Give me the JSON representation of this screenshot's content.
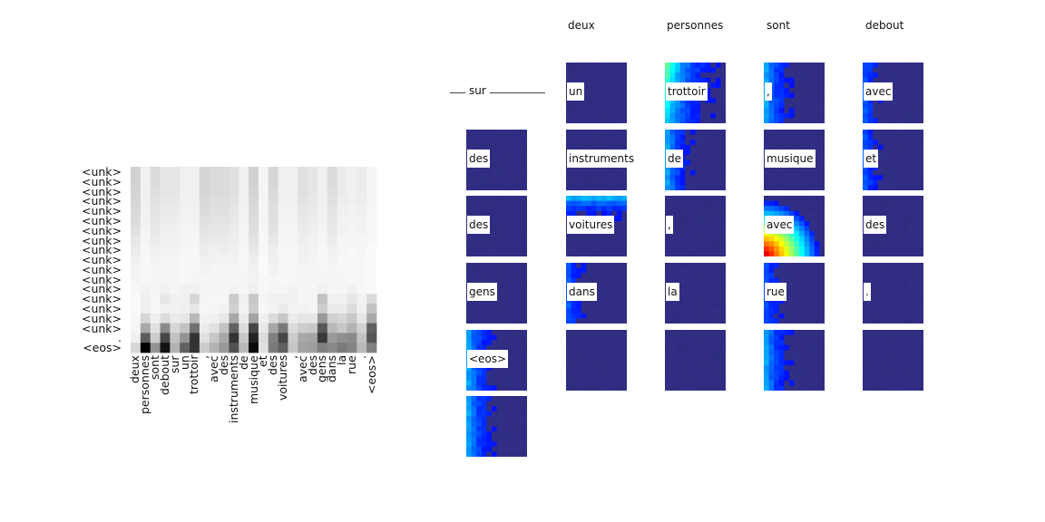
{
  "chart_data": [
    {
      "type": "heatmap",
      "title": "",
      "x_tokens": [
        "deux",
        "personnes",
        "sont",
        "debout",
        "sur",
        "un",
        "trottoir",
        ",",
        "avec",
        "des",
        "instruments",
        "de",
        "musique",
        "et",
        "des",
        "voitures",
        ",",
        "avec",
        "des",
        "gens",
        "dans",
        "la",
        "rue",
        ".",
        "<eos>"
      ],
      "y_tokens": [
        "<unk>",
        "<unk>",
        "<unk>",
        "<unk>",
        "<unk>",
        "<unk>",
        "<unk>",
        "<unk>",
        "<unk>",
        "<unk>",
        "<unk>",
        "<unk>",
        "<unk>",
        "<unk>",
        "<unk>",
        "<unk>",
        "<unk>",
        ".",
        "<eos>"
      ],
      "colormap": "grayscale (dark = high attention)",
      "rows": [
        [
          0.18,
          0.06,
          0.14,
          0.1,
          0.1,
          0.06,
          0.06,
          0.16,
          0.14,
          0.14,
          0.12,
          0.06,
          0.18,
          0.04,
          0.16,
          0.06,
          0.06,
          0.12,
          0.1,
          0.06,
          0.14,
          0.08,
          0.06,
          0.08,
          0.04
        ],
        [
          0.18,
          0.06,
          0.14,
          0.1,
          0.1,
          0.06,
          0.06,
          0.16,
          0.14,
          0.14,
          0.12,
          0.06,
          0.18,
          0.04,
          0.16,
          0.06,
          0.06,
          0.12,
          0.1,
          0.06,
          0.14,
          0.08,
          0.06,
          0.08,
          0.04
        ],
        [
          0.17,
          0.06,
          0.13,
          0.1,
          0.1,
          0.06,
          0.06,
          0.16,
          0.14,
          0.14,
          0.12,
          0.06,
          0.17,
          0.04,
          0.15,
          0.06,
          0.06,
          0.12,
          0.1,
          0.06,
          0.13,
          0.08,
          0.06,
          0.08,
          0.04
        ],
        [
          0.16,
          0.06,
          0.12,
          0.09,
          0.09,
          0.06,
          0.06,
          0.15,
          0.13,
          0.13,
          0.11,
          0.06,
          0.16,
          0.04,
          0.14,
          0.06,
          0.06,
          0.11,
          0.09,
          0.06,
          0.12,
          0.07,
          0.06,
          0.07,
          0.04
        ],
        [
          0.15,
          0.05,
          0.11,
          0.08,
          0.08,
          0.05,
          0.05,
          0.14,
          0.12,
          0.12,
          0.1,
          0.05,
          0.15,
          0.04,
          0.13,
          0.05,
          0.05,
          0.1,
          0.08,
          0.05,
          0.11,
          0.06,
          0.05,
          0.06,
          0.03
        ],
        [
          0.14,
          0.05,
          0.1,
          0.07,
          0.07,
          0.05,
          0.05,
          0.12,
          0.11,
          0.11,
          0.09,
          0.05,
          0.14,
          0.04,
          0.12,
          0.05,
          0.05,
          0.09,
          0.07,
          0.05,
          0.1,
          0.05,
          0.05,
          0.05,
          0.03
        ],
        [
          0.12,
          0.04,
          0.09,
          0.06,
          0.06,
          0.04,
          0.04,
          0.11,
          0.1,
          0.1,
          0.08,
          0.04,
          0.13,
          0.03,
          0.11,
          0.04,
          0.04,
          0.08,
          0.06,
          0.04,
          0.09,
          0.05,
          0.04,
          0.05,
          0.03
        ],
        [
          0.1,
          0.04,
          0.08,
          0.06,
          0.06,
          0.04,
          0.04,
          0.09,
          0.08,
          0.08,
          0.07,
          0.04,
          0.11,
          0.03,
          0.09,
          0.04,
          0.04,
          0.07,
          0.05,
          0.04,
          0.08,
          0.04,
          0.04,
          0.04,
          0.03
        ],
        [
          0.08,
          0.03,
          0.06,
          0.05,
          0.05,
          0.03,
          0.03,
          0.07,
          0.06,
          0.07,
          0.06,
          0.03,
          0.09,
          0.03,
          0.07,
          0.03,
          0.03,
          0.06,
          0.05,
          0.03,
          0.06,
          0.04,
          0.03,
          0.04,
          0.02
        ],
        [
          0.06,
          0.03,
          0.05,
          0.04,
          0.04,
          0.03,
          0.03,
          0.06,
          0.05,
          0.05,
          0.05,
          0.03,
          0.07,
          0.02,
          0.06,
          0.03,
          0.03,
          0.05,
          0.04,
          0.03,
          0.05,
          0.03,
          0.03,
          0.03,
          0.02
        ],
        [
          0.05,
          0.03,
          0.04,
          0.04,
          0.04,
          0.03,
          0.03,
          0.05,
          0.04,
          0.04,
          0.04,
          0.03,
          0.06,
          0.02,
          0.05,
          0.03,
          0.03,
          0.04,
          0.04,
          0.03,
          0.04,
          0.03,
          0.03,
          0.03,
          0.02
        ],
        [
          0.04,
          0.03,
          0.04,
          0.04,
          0.04,
          0.03,
          0.04,
          0.04,
          0.04,
          0.04,
          0.04,
          0.04,
          0.05,
          0.03,
          0.04,
          0.03,
          0.03,
          0.04,
          0.04,
          0.04,
          0.04,
          0.04,
          0.03,
          0.03,
          0.02
        ],
        [
          0.03,
          0.05,
          0.04,
          0.05,
          0.04,
          0.06,
          0.05,
          0.04,
          0.04,
          0.04,
          0.05,
          0.04,
          0.06,
          0.03,
          0.04,
          0.04,
          0.05,
          0.04,
          0.04,
          0.06,
          0.04,
          0.04,
          0.06,
          0.03,
          0.02
        ],
        [
          0.02,
          0.06,
          0.03,
          0.1,
          0.06,
          0.06,
          0.16,
          0.04,
          0.03,
          0.03,
          0.2,
          0.06,
          0.22,
          0.04,
          0.06,
          0.06,
          0.06,
          0.04,
          0.04,
          0.24,
          0.06,
          0.06,
          0.1,
          0.05,
          0.14
        ],
        [
          0.02,
          0.06,
          0.03,
          0.06,
          0.05,
          0.06,
          0.1,
          0.03,
          0.04,
          0.05,
          0.18,
          0.05,
          0.2,
          0.03,
          0.05,
          0.08,
          0.05,
          0.05,
          0.04,
          0.2,
          0.08,
          0.08,
          0.14,
          0.06,
          0.24
        ],
        [
          0.03,
          0.16,
          0.06,
          0.14,
          0.08,
          0.1,
          0.28,
          0.05,
          0.06,
          0.1,
          0.34,
          0.08,
          0.36,
          0.06,
          0.14,
          0.22,
          0.08,
          0.1,
          0.1,
          0.4,
          0.18,
          0.16,
          0.22,
          0.1,
          0.34
        ],
        [
          0.04,
          0.34,
          0.12,
          0.46,
          0.16,
          0.24,
          0.56,
          0.08,
          0.12,
          0.24,
          0.62,
          0.14,
          0.72,
          0.1,
          0.34,
          0.52,
          0.14,
          0.2,
          0.22,
          0.66,
          0.28,
          0.22,
          0.3,
          0.18,
          0.62
        ],
        [
          0.06,
          0.64,
          0.2,
          0.72,
          0.24,
          0.42,
          0.8,
          0.12,
          0.22,
          0.34,
          0.8,
          0.22,
          0.86,
          0.14,
          0.5,
          0.72,
          0.2,
          0.34,
          0.36,
          0.78,
          0.4,
          0.44,
          0.46,
          0.24,
          0.66
        ],
        [
          0.16,
          1.0,
          0.42,
          0.92,
          0.3,
          0.62,
          0.8,
          0.2,
          0.3,
          0.4,
          0.68,
          0.28,
          0.96,
          0.12,
          0.52,
          0.62,
          0.22,
          0.36,
          0.38,
          0.5,
          0.46,
          0.52,
          0.48,
          0.28,
          0.5
        ]
      ]
    },
    {
      "type": "heatmap",
      "title": "",
      "grid_headers": [
        "deux",
        "personnes",
        "sont",
        "debout"
      ],
      "left_label": "sur",
      "tiles": [
        {
          "word": "des",
          "pattern": "plain"
        },
        {
          "word": "des",
          "pattern": "plain"
        },
        {
          "word": "gens",
          "pattern": "plain"
        },
        {
          "word": "<eos>",
          "pattern": "left-bright"
        },
        {
          "word": "",
          "pattern": "left-bright"
        },
        {
          "word": "un",
          "pattern": "plain"
        },
        {
          "word": "instruments",
          "pattern": "plain"
        },
        {
          "word": "voitures",
          "pattern": "top-blue"
        },
        {
          "word": "dans",
          "pattern": "left-mid"
        },
        {
          "word": "",
          "pattern": "plain"
        },
        {
          "word": "trottoir",
          "pattern": "cyan-left"
        },
        {
          "word": "de",
          "pattern": "left-bright"
        },
        {
          "word": ",",
          "pattern": "plain"
        },
        {
          "word": "la",
          "pattern": "plain"
        },
        {
          "word": "",
          "pattern": "plain"
        },
        {
          "word": ",",
          "pattern": "left-bright"
        },
        {
          "word": "musique",
          "pattern": "plain"
        },
        {
          "word": "avec",
          "pattern": "hot-bottom-left"
        },
        {
          "word": "rue",
          "pattern": "left-mid"
        },
        {
          "word": "",
          "pattern": "left-bright"
        },
        {
          "word": "avec",
          "pattern": "left-mid"
        },
        {
          "word": "et",
          "pattern": "left-mid"
        },
        {
          "word": "des",
          "pattern": "plain"
        },
        {
          "word": ".",
          "pattern": "plain"
        },
        {
          "word": "",
          "pattern": "plain"
        }
      ]
    }
  ]
}
